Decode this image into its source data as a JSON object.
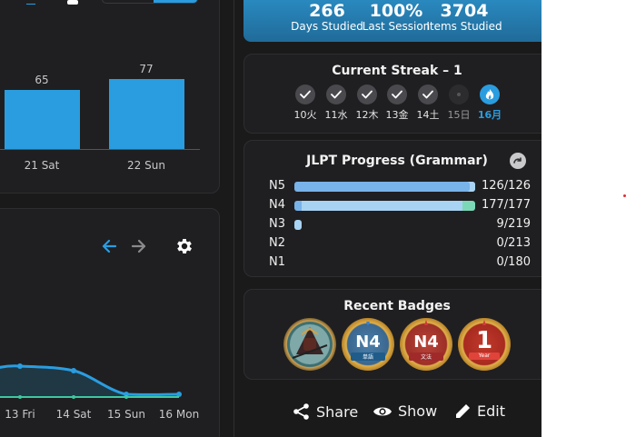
{
  "bar_chart": {
    "bars": [
      {
        "value_label": "65",
        "x_label": "21 Sat"
      },
      {
        "value_label": "77",
        "x_label": "22 Sun"
      }
    ]
  },
  "line_chart": {
    "x_labels": [
      "13 Fri",
      "14 Sat",
      "15 Sun",
      "16 Mon"
    ]
  },
  "stats": {
    "days_value": "266",
    "days_label": "Days Studied",
    "session_value": "100%",
    "session_label": "Last Session",
    "items_value": "3704",
    "items_label": "Items Studied"
  },
  "streak": {
    "title": "Current Streak – 1",
    "days": [
      {
        "label": "10火",
        "state": "done"
      },
      {
        "label": "11水",
        "state": "done"
      },
      {
        "label": "12木",
        "state": "done"
      },
      {
        "label": "13金",
        "state": "done"
      },
      {
        "label": "14土",
        "state": "done"
      },
      {
        "label": "15日",
        "state": "missed"
      },
      {
        "label": "16月",
        "state": "today"
      }
    ]
  },
  "jlpt": {
    "title": "JLPT Progress (Grammar)",
    "levels": [
      {
        "level": "N5",
        "count": "126/126",
        "progress": 1.0
      },
      {
        "level": "N4",
        "count": "177/177",
        "progress": 1.0
      },
      {
        "level": "N3",
        "count": "9/219",
        "progress": 0.04
      },
      {
        "level": "N2",
        "count": "0/213",
        "progress": 0.0
      },
      {
        "level": "N1",
        "count": "0/180",
        "progress": 0.0
      }
    ]
  },
  "badges": {
    "title": "Recent Badges",
    "items": [
      {
        "name": "samurai-badge",
        "text": ""
      },
      {
        "name": "n4-vocab-badge",
        "text": "N4",
        "sub": "単語"
      },
      {
        "name": "n4-grammar-badge",
        "text": "N4",
        "sub": "文法"
      },
      {
        "name": "one-year-badge",
        "text": "1",
        "sub": "Year"
      }
    ]
  },
  "actions": {
    "share": "Share",
    "show": "Show",
    "edit": "Edit"
  },
  "colors": {
    "accent": "#2a9de0",
    "background": "#1a1a1b",
    "card": "#1f1f21",
    "n5_bar": "#78b3ea",
    "n4_bar": "#a9d3f3",
    "n4_end": "#7cd9b8",
    "streak_done": "#4a4a4e",
    "streak_today": "#2a9de0"
  }
}
